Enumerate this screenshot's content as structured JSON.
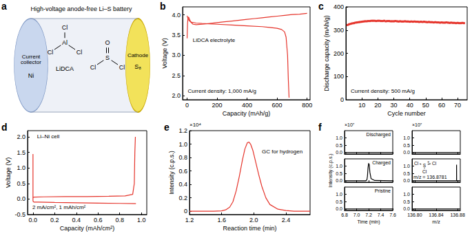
{
  "diagram": {
    "panel": "a",
    "title": "High-voltage anode-free Li–S battery",
    "collector": {
      "label": "Current collector",
      "material": "Ni"
    },
    "electrolyte": {
      "label": "LiDCA",
      "molecules": [
        {
          "center": "Al",
          "atoms": [
            "Cl",
            "Cl",
            "Cl"
          ]
        },
        {
          "center": "S",
          "atoms": [
            "O",
            "Cl",
            "Cl"
          ]
        }
      ]
    },
    "cathode": {
      "label": "Cathode",
      "material": "S₈"
    }
  },
  "chart_data": [
    {
      "panel": "b",
      "type": "line",
      "annotations": [
        "LiDCA electrolyte",
        "Current density: 1,000 mA/g"
      ],
      "x_label": "Capacity (mAh/g)",
      "y_label": "Voltage (V)",
      "xlim": [
        -30,
        820
      ],
      "xticks": [
        0,
        200,
        400,
        600,
        800
      ],
      "ylim": [
        1.9,
        4.2
      ],
      "yticks": [
        {
          "value": 2,
          "label": "2.0"
        },
        2.5,
        {
          "value": 3,
          "label": "3.0"
        },
        3.5,
        {
          "value": 4,
          "label": "4.0"
        }
      ],
      "series": [
        {
          "color": "#e5332a",
          "line_style": "solid",
          "x": [
            0,
            3,
            6,
            10,
            15,
            25,
            40,
            60,
            100,
            150,
            200,
            250,
            300,
            350,
            400,
            450,
            500,
            550,
            600,
            650,
            700,
            750,
            800
          ],
          "values": [
            3.42,
            3.8,
            3.92,
            3.95,
            3.9,
            3.82,
            3.77,
            3.76,
            3.77,
            3.79,
            3.81,
            3.83,
            3.85,
            3.87,
            3.89,
            3.91,
            3.93,
            3.95,
            3.97,
            3.99,
            4.01,
            4.02,
            4.04
          ]
        },
        {
          "color": "#e5332a",
          "line_style": "solid",
          "x": [
            0,
            5,
            15,
            30,
            60,
            100,
            200,
            300,
            400,
            500,
            550,
            600,
            630,
            650,
            660,
            670,
            675,
            680
          ],
          "values": [
            3.98,
            3.92,
            3.85,
            3.82,
            3.8,
            3.79,
            3.77,
            3.75,
            3.73,
            3.71,
            3.69,
            3.67,
            3.64,
            3.58,
            3.45,
            3.0,
            2.4,
            1.95
          ]
        }
      ]
    },
    {
      "panel": "c",
      "type": "line",
      "annotations": [
        "Current density: 500 mA/g"
      ],
      "x_label": "Cycle number",
      "y_label": "Discharge capacity (mAh/g)",
      "xlim": [
        0,
        76
      ],
      "xticks": [
        10,
        20,
        30,
        40,
        50,
        60,
        70
      ],
      "ylim": [
        0,
        400
      ],
      "yticks": [
        0,
        100,
        200,
        300,
        400
      ],
      "series": [
        {
          "color": "#e5332a",
          "marker": "square",
          "line_style": "solid",
          "x": [
            1,
            2,
            3,
            4,
            5,
            6,
            7,
            8,
            9,
            10,
            11,
            12,
            13,
            14,
            15,
            16,
            17,
            18,
            19,
            20,
            21,
            22,
            23,
            24,
            25,
            26,
            27,
            28,
            29,
            30,
            31,
            32,
            33,
            34,
            35,
            36,
            37,
            38,
            39,
            40,
            41,
            42,
            43,
            44,
            45,
            46,
            47,
            48,
            49,
            50,
            51,
            52,
            53,
            54,
            55,
            56,
            57,
            58,
            59,
            60,
            61,
            62,
            63,
            64,
            65,
            66,
            67,
            68,
            69,
            70,
            71,
            72,
            73,
            74
          ],
          "values": [
            322,
            325,
            327,
            329,
            330,
            332,
            333,
            334,
            335,
            336,
            337,
            338,
            338,
            339,
            339,
            340,
            340,
            340,
            339,
            340,
            340,
            339,
            339,
            340,
            338,
            339,
            339,
            338,
            338,
            338,
            339,
            338,
            337,
            338,
            337,
            337,
            338,
            337,
            337,
            336,
            337,
            336,
            337,
            336,
            336,
            335,
            336,
            335,
            336,
            335,
            334,
            335,
            334,
            334,
            333,
            334,
            333,
            333,
            332,
            333,
            332,
            332,
            333,
            332,
            331,
            332,
            331,
            331,
            330,
            331,
            330,
            330,
            331,
            330
          ]
        }
      ]
    },
    {
      "panel": "d",
      "type": "line",
      "annotations": [
        "Li–Ni cell",
        "2 mA/cm², 1 mAh/cm²"
      ],
      "x_label": "Capacity (mAh/cm²)",
      "y_label": "Voltage (V)",
      "xlim": [
        -0.05,
        1.05
      ],
      "xticks": [
        {
          "value": 0,
          "label": "0.0"
        },
        0.2,
        0.4,
        0.6,
        0.8,
        {
          "value": 1,
          "label": "1.0"
        }
      ],
      "ylim": [
        -0.5,
        2.2
      ],
      "yticks": [
        -0.5,
        {
          "value": 0,
          "label": "0.0"
        },
        0.5,
        {
          "value": 1,
          "label": "1.0"
        },
        1.5,
        {
          "value": 2,
          "label": "2.0"
        }
      ],
      "series": [
        {
          "color": "#e5332a",
          "line_style": "solid",
          "x": [
            0,
            0,
            0.002,
            0.01,
            0.05,
            0.2,
            0.4,
            0.6,
            0.8,
            0.95
          ],
          "values": [
            1.45,
            -0.05,
            -0.08,
            -0.1,
            -0.1,
            -0.11,
            -0.12,
            -0.13,
            -0.14,
            -0.15
          ]
        },
        {
          "color": "#e5332a",
          "line_style": "solid",
          "x": [
            0,
            0.01,
            0.1,
            0.3,
            0.5,
            0.7,
            0.85,
            0.92,
            0.935,
            0.94,
            0.945
          ],
          "values": [
            0.05,
            0.06,
            0.07,
            0.08,
            0.08,
            0.09,
            0.1,
            0.15,
            0.5,
            1.5,
            2.0
          ]
        }
      ]
    },
    {
      "panel": "e",
      "type": "line",
      "annotations": [
        "GC for hydrogen",
        "×10⁴"
      ],
      "x_label": "Reaction time (min)",
      "y_label": "Intensity (c.p.s.)",
      "xlim": [
        1.2,
        2.7
      ],
      "xticks": [
        1.2,
        1.6,
        {
          "value": 2,
          "label": "2.0"
        },
        2.4
      ],
      "ylim": [
        -0.05,
        1.2
      ],
      "yticks": [
        0,
        0.2,
        0.4,
        0.6,
        0.8,
        {
          "value": 1,
          "label": "1.0"
        },
        1.2
      ],
      "series": [
        {
          "color": "#e5332a",
          "line_style": "solid",
          "x": [
            1.2,
            1.5,
            1.6,
            1.65,
            1.7,
            1.74,
            1.78,
            1.82,
            1.86,
            1.89,
            1.92,
            1.94,
            1.96,
            1.99,
            2.02,
            2.06,
            2.1,
            2.15,
            2.2,
            2.3,
            2.4,
            2.5,
            2.7
          ],
          "values": [
            0,
            0,
            0.005,
            0.02,
            0.06,
            0.14,
            0.3,
            0.52,
            0.77,
            0.93,
            1.02,
            1.03,
            1.0,
            0.9,
            0.75,
            0.55,
            0.37,
            0.2,
            0.1,
            0.03,
            0.01,
            0,
            0
          ]
        }
      ]
    },
    {
      "panel": "f",
      "type": "line",
      "title": "Discharged",
      "annotations": [
        "×10⁷"
      ],
      "tick_labels": "y",
      "xlim": [
        6.8,
        7.6
      ],
      "xticks": [
        6.8,
        {
          "value": 7,
          "label": "7.0"
        },
        7.2,
        7.4,
        7.6
      ],
      "ylim": [
        -0.1,
        1.5
      ],
      "yticks": [
        {
          "value": 0,
          "label": "0.0"
        },
        0.5,
        {
          "value": 1,
          "label": "1.0"
        }
      ],
      "series": [
        {
          "color": "#000000",
          "line_style": "solid",
          "x": [
            6.8,
            7.6
          ],
          "values": [
            0,
            0
          ]
        }
      ]
    },
    {
      "type": "line",
      "title": "Charged",
      "tick_labels": "y",
      "y_label": "Intensity (c.p.s.)",
      "xlim": [
        6.8,
        7.6
      ],
      "xticks": [
        6.8,
        {
          "value": 7,
          "label": "7.0"
        },
        7.2,
        7.4,
        7.6
      ],
      "ylim": [
        -0.1,
        1.5
      ],
      "yticks": [
        {
          "value": 0,
          "label": "0.0"
        },
        0.5,
        {
          "value": 1,
          "label": "1.0"
        }
      ],
      "series": [
        {
          "color": "#000000",
          "line_style": "solid",
          "x": [
            6.8,
            7.15,
            7.17,
            7.18,
            7.19,
            7.2,
            7.21,
            7.22,
            7.24,
            7.3,
            7.6
          ],
          "values": [
            0,
            0,
            0.05,
            0.3,
            0.9,
            1.2,
            1.1,
            0.6,
            0.15,
            0.02,
            0
          ]
        }
      ]
    },
    {
      "type": "line",
      "title": "Pristine",
      "x_label": "Time (min)",
      "xlim": [
        6.8,
        7.6
      ],
      "xticks": [
        6.8,
        {
          "value": 7,
          "label": "7.0"
        },
        7.2,
        7.4,
        7.6
      ],
      "ylim": [
        -0.1,
        1.5
      ],
      "yticks": [
        {
          "value": 0,
          "label": "0.0"
        },
        0.5,
        {
          "value": 1,
          "label": "1.0"
        }
      ],
      "series": [
        {
          "color": "#000000",
          "line_style": "solid",
          "x": [
            6.8,
            7.6
          ],
          "values": [
            0,
            0
          ]
        }
      ]
    },
    {
      "type": "line",
      "annotations": [
        "×10⁷"
      ],
      "tick_labels": "y",
      "xlim": [
        136.795,
        136.885
      ],
      "xticks": [
        {
          "value": 136.8,
          "label": "136.80"
        },
        136.84,
        136.88
      ],
      "ylim": [
        -0.1,
        1.5
      ],
      "yticks": [
        {
          "value": 0,
          "label": "0.0"
        },
        0.5,
        {
          "value": 1,
          "label": "1.0"
        }
      ],
      "series": [
        {
          "color": "#000000",
          "line_style": "solid",
          "x": [
            136.795,
            136.885
          ],
          "values": [
            0,
            0
          ]
        }
      ]
    },
    {
      "type": "line",
      "annotations": [
        "m/z = 136.8781"
      ],
      "tick_labels": "y",
      "molecule": {
        "center": "S",
        "charge": "+",
        "atoms": [
          "Cl",
          "Cl",
          "Cl"
        ]
      },
      "xlim": [
        136.795,
        136.885
      ],
      "xticks": [
        {
          "value": 136.8,
          "label": "136.80"
        },
        136.84,
        136.88
      ],
      "ylim": [
        -0.1,
        1.5
      ],
      "yticks": [
        {
          "value": 0,
          "label": "0.0"
        },
        0.5,
        {
          "value": 1,
          "label": "1.0"
        }
      ],
      "series": [
        {
          "color": "#000000",
          "line_style": "solid",
          "x": [
            136.795,
            136.878,
            136.8781,
            136.8782,
            136.885
          ],
          "values": [
            0,
            0,
            1.1,
            0,
            0
          ]
        }
      ]
    },
    {
      "type": "line",
      "x_label": "m/z",
      "xlim": [
        136.795,
        136.885
      ],
      "xticks": [
        {
          "value": 136.8,
          "label": "136.80"
        },
        136.84,
        136.88
      ],
      "ylim": [
        -0.1,
        1.5
      ],
      "yticks": [
        {
          "value": 0,
          "label": "0.0"
        },
        0.5,
        {
          "value": 1,
          "label": "1.0"
        }
      ],
      "series": [
        {
          "color": "#000000",
          "line_style": "solid",
          "x": [
            136.795,
            136.885
          ],
          "values": [
            0,
            0
          ]
        }
      ]
    }
  ]
}
